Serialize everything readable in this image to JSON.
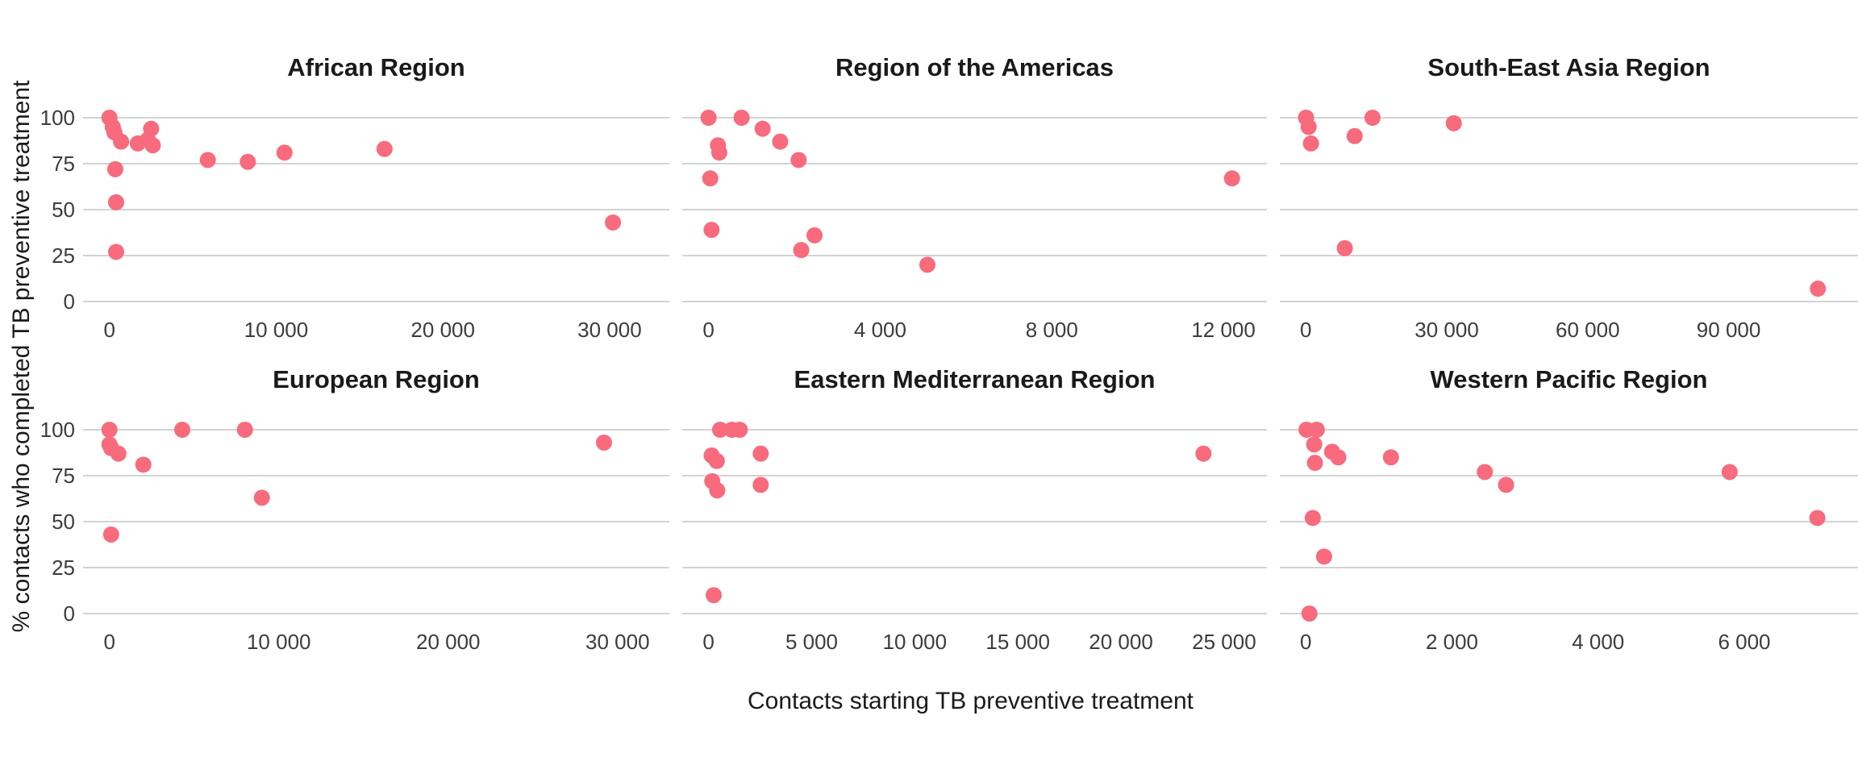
{
  "chart_data": {
    "type": "scatter",
    "xlabel": "Contacts starting TB preventive treatment",
    "ylabel": "% contacts who completed TB preventive treatment",
    "point_color": "#F76B7D",
    "gridline_color": "#D3D3D3",
    "tick_text_color": "#3c3c3c",
    "grid": "horizontal-only",
    "legend": "none",
    "ylim": [
      0,
      100
    ],
    "y_ticks": [
      0,
      25,
      50,
      75,
      100
    ],
    "y_tick_labels": [
      "0",
      "25",
      "50",
      "75",
      "100"
    ],
    "facets": [
      {
        "title": "African Region",
        "show_y_labels": true,
        "x_ticks": [
          0,
          10000,
          20000,
          30000
        ],
        "x_tick_labels": [
          "0",
          "10 000",
          "20 000",
          "30 000"
        ],
        "x_max": 32000,
        "points": [
          [
            0,
            100
          ],
          [
            200,
            95
          ],
          [
            300,
            92
          ],
          [
            700,
            87
          ],
          [
            1700,
            86
          ],
          [
            2300,
            88
          ],
          [
            2500,
            94
          ],
          [
            2600,
            85
          ],
          [
            350,
            72
          ],
          [
            400,
            54
          ],
          [
            400,
            27
          ],
          [
            5900,
            77
          ],
          [
            8300,
            76
          ],
          [
            10500,
            81
          ],
          [
            16500,
            83
          ],
          [
            30200,
            43
          ]
        ]
      },
      {
        "title": "Region of the Americas",
        "show_y_labels": false,
        "x_ticks": [
          0,
          4000,
          8000,
          12000
        ],
        "x_tick_labels": [
          "0",
          "4 000",
          "8 000",
          "12 000"
        ],
        "x_max": 12400,
        "points": [
          [
            0,
            100
          ],
          [
            770,
            100
          ],
          [
            1260,
            94
          ],
          [
            1670,
            87
          ],
          [
            2100,
            77
          ],
          [
            220,
            85
          ],
          [
            250,
            81
          ],
          [
            40,
            67
          ],
          [
            70,
            39
          ],
          [
            2470,
            36
          ],
          [
            2160,
            28
          ],
          [
            5100,
            20
          ],
          [
            12200,
            67
          ]
        ]
      },
      {
        "title": "South-East Asia Region",
        "show_y_labels": false,
        "x_ticks": [
          0,
          30000,
          60000,
          90000
        ],
        "x_tick_labels": [
          "0",
          "30 000",
          "60 000",
          "90 000"
        ],
        "x_max": 112000,
        "points": [
          [
            50,
            100
          ],
          [
            600,
            95
          ],
          [
            1100,
            86
          ],
          [
            10400,
            90
          ],
          [
            14200,
            100
          ],
          [
            31500,
            97
          ],
          [
            8300,
            29
          ],
          [
            109000,
            7
          ]
        ]
      },
      {
        "title": "European Region",
        "show_y_labels": true,
        "x_ticks": [
          0,
          10000,
          20000,
          30000
        ],
        "x_tick_labels": [
          "0",
          "10 000",
          "20 000",
          "30 000"
        ],
        "x_max": 31500,
        "points": [
          [
            0,
            100
          ],
          [
            0,
            92
          ],
          [
            100,
            90
          ],
          [
            530,
            87
          ],
          [
            2000,
            81
          ],
          [
            4300,
            100
          ],
          [
            8000,
            100
          ],
          [
            9000,
            63
          ],
          [
            100,
            43
          ],
          [
            29200,
            93
          ]
        ]
      },
      {
        "title": "Eastern Mediterranean Region",
        "show_y_labels": false,
        "x_ticks": [
          0,
          5000,
          10000,
          15000,
          20000,
          25000
        ],
        "x_tick_labels": [
          "0",
          "5 000",
          "10 000",
          "15 000",
          "20 000",
          "25 000"
        ],
        "x_max": 25800,
        "points": [
          [
            560,
            100
          ],
          [
            1130,
            100
          ],
          [
            1510,
            100
          ],
          [
            150,
            86
          ],
          [
            400,
            83
          ],
          [
            2530,
            87
          ],
          [
            180,
            72
          ],
          [
            420,
            67
          ],
          [
            2530,
            70
          ],
          [
            250,
            10
          ],
          [
            24000,
            87
          ]
        ]
      },
      {
        "title": "Western Pacific Region",
        "show_y_labels": false,
        "x_ticks": [
          0,
          2000,
          4000,
          6000
        ],
        "x_tick_labels": [
          "0",
          "2 000",
          "4 000",
          "6 000"
        ],
        "x_max": 7200,
        "points": [
          [
            10,
            100
          ],
          [
            150,
            100
          ],
          [
            115,
            92
          ],
          [
            125,
            82
          ],
          [
            360,
            88
          ],
          [
            445,
            85
          ],
          [
            1165,
            85
          ],
          [
            2450,
            77
          ],
          [
            2740,
            70
          ],
          [
            5800,
            77
          ],
          [
            95,
            52
          ],
          [
            250,
            31
          ],
          [
            50,
            0
          ],
          [
            7000,
            52
          ]
        ]
      }
    ]
  }
}
